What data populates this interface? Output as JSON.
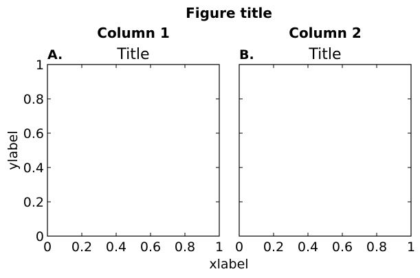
{
  "figure": {
    "title": "Figure title",
    "xlabel": "xlabel",
    "ylabel": "ylabel"
  },
  "chart_data": [
    {
      "type": "scatter",
      "column_title": "Column 1",
      "panel_label": "A.",
      "title": "Title",
      "xlim": [
        0,
        1
      ],
      "ylim": [
        0,
        1
      ],
      "xticks": [
        "0",
        "0.2",
        "0.4",
        "0.6",
        "0.8",
        "1"
      ],
      "yticks": [
        "0",
        "0.2",
        "0.4",
        "0.6",
        "0.8",
        "1"
      ],
      "show_yticklabels": true,
      "series": [],
      "grid": false
    },
    {
      "type": "scatter",
      "column_title": "Column 2",
      "panel_label": "B.",
      "title": "Title",
      "xlim": [
        0,
        1
      ],
      "ylim": [
        0,
        1
      ],
      "xticks": [
        "0",
        "0.2",
        "0.4",
        "0.6",
        "0.8",
        "1"
      ],
      "yticks": [
        "0",
        "0.2",
        "0.4",
        "0.6",
        "0.8",
        "1"
      ],
      "show_yticklabels": false,
      "series": [],
      "grid": false
    }
  ]
}
